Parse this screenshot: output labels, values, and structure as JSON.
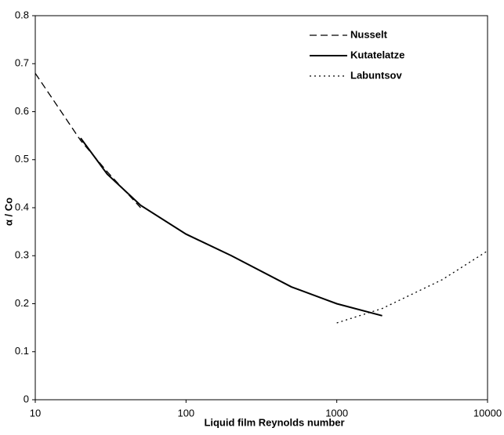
{
  "chart_data": {
    "type": "line",
    "xlabel": "Liquid film Reynolds number",
    "ylabel": "α / Co",
    "xscale": "log",
    "xlim": [
      10,
      10000
    ],
    "xticks": [
      10,
      100,
      1000,
      10000
    ],
    "ylim": [
      0,
      0.8
    ],
    "yticks": [
      0,
      0.1,
      0.2,
      0.3,
      0.4,
      0.5,
      0.6,
      0.7,
      0.8
    ],
    "grid": false,
    "legend": "upper right",
    "series": [
      {
        "name": "Nusselt",
        "color": "#000000",
        "dash": "dashed",
        "x": [
          10,
          20,
          30,
          50
        ],
        "values": [
          0.68,
          0.54,
          0.475,
          0.4
        ]
      },
      {
        "name": "Kutatelatze",
        "color": "#000000",
        "dash": "solid",
        "x": [
          20,
          30,
          50,
          100,
          200,
          500,
          1000,
          2000
        ],
        "values": [
          0.545,
          0.47,
          0.405,
          0.345,
          0.3,
          0.235,
          0.2,
          0.175
        ]
      },
      {
        "name": "Labuntsov",
        "color": "#000000",
        "dash": "dotted",
        "x": [
          1000,
          2000,
          5000,
          10000
        ],
        "values": [
          0.16,
          0.19,
          0.25,
          0.31
        ]
      }
    ]
  }
}
